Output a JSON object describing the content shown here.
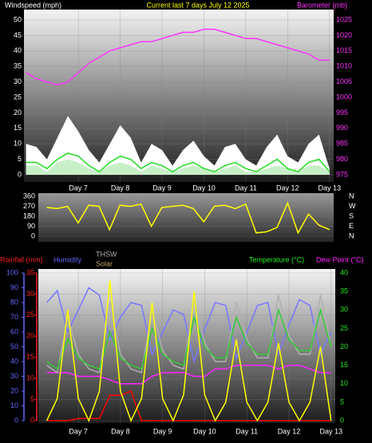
{
  "chart_data": [
    {
      "type": "line",
      "title": "Current last 7 days July 12 2025",
      "x": [
        5.75,
        6,
        6.25,
        6.5,
        6.75,
        7,
        7.25,
        7.5,
        7.75,
        8,
        8.25,
        8.5,
        8.75,
        9,
        9.25,
        9.5,
        9.75,
        10,
        10.25,
        10.5,
        10.75,
        11,
        11.25,
        11.5,
        11.75,
        12,
        12.25,
        12.5,
        12.75,
        13
      ],
      "xlim": [
        5.7,
        13.1
      ],
      "xticks": [
        {
          "value": 7,
          "label": "Day 7"
        },
        {
          "value": 8,
          "label": "Day 8"
        },
        {
          "value": 9,
          "label": "Day 9"
        },
        {
          "value": 10,
          "label": "Day 10"
        },
        {
          "value": 11,
          "label": "Day 11"
        },
        {
          "value": 12,
          "label": "Day 12"
        },
        {
          "value": 13,
          "label": "Day 13"
        }
      ],
      "grid": true,
      "axes": [
        {
          "label": "Windspeed (mph)",
          "color": "#ffffff",
          "lim": [
            0,
            50
          ],
          "ticks": [
            0,
            5,
            10,
            15,
            20,
            25,
            30,
            35,
            40,
            45,
            50
          ]
        },
        {
          "label": "Barometer (mb)",
          "color": "#ff33ff",
          "lim": [
            975,
            1025
          ],
          "ticks": [
            975,
            980,
            985,
            990,
            995,
            1000,
            1005,
            1010,
            1015,
            1020,
            1025
          ]
        }
      ],
      "series": [
        {
          "color": "#ffffff",
          "style": "area",
          "axis": 0,
          "values": [
            10,
            9,
            5,
            12,
            19,
            14,
            8,
            4,
            10,
            16,
            12,
            4,
            10,
            8,
            3,
            8,
            11,
            6,
            3,
            9,
            10,
            5,
            3,
            9,
            13,
            6,
            4,
            10,
            13,
            2
          ]
        },
        {
          "color": "#c8f0c8",
          "style": "area",
          "axis": 0,
          "values": [
            3,
            3,
            1,
            4,
            5,
            4,
            2,
            1,
            3,
            4,
            3,
            1,
            3,
            2,
            1,
            2,
            3,
            2,
            1,
            2,
            3,
            1,
            1,
            2,
            3,
            2,
            1,
            3,
            3,
            1
          ]
        },
        {
          "color": "#22dd22",
          "style": "line",
          "axis": 0,
          "values": [
            4,
            4,
            2,
            5,
            7,
            6,
            3,
            1,
            4,
            6,
            5,
            2,
            4,
            3,
            1,
            3,
            4,
            2,
            1,
            3,
            4,
            2,
            1,
            3,
            5,
            2,
            1,
            4,
            5,
            1
          ]
        },
        {
          "color": "#ff33ff",
          "style": "line",
          "axis": 1,
          "values": [
            1008,
            1006,
            1005,
            1004,
            1005,
            1008,
            1011,
            1013,
            1015,
            1016,
            1017,
            1018,
            1018,
            1019,
            1020,
            1021,
            1021,
            1022,
            1022,
            1021,
            1020,
            1019,
            1019,
            1018,
            1017,
            1016,
            1015,
            1014,
            1012,
            1012
          ]
        }
      ]
    },
    {
      "type": "line",
      "x": [
        6.25,
        6.5,
        6.75,
        7,
        7.25,
        7.5,
        7.75,
        8,
        8.25,
        8.5,
        8.75,
        9,
        9.25,
        9.5,
        9.75,
        10,
        10.25,
        10.5,
        10.75,
        11,
        11.25,
        11.5,
        11.75,
        12,
        12.25,
        12.5,
        12.75,
        13
      ],
      "xlim": [
        6.05,
        13.1
      ],
      "grid": true,
      "axes": [
        {
          "color": "#ffffff",
          "lim": [
            0,
            360
          ],
          "ticks": [
            0,
            90,
            180,
            270,
            360
          ]
        },
        {
          "color": "#ffffff",
          "lim": [
            0,
            360
          ],
          "ticks": [
            {
              "value": 360,
              "label": "N"
            },
            {
              "value": 270,
              "label": "W"
            },
            {
              "value": 180,
              "label": "S"
            },
            {
              "value": 90,
              "label": "E"
            },
            {
              "value": 0,
              "label": "N"
            }
          ]
        }
      ],
      "series": [
        {
          "color": "#ffff00",
          "style": "line",
          "axis": 0,
          "values": [
            260,
            250,
            270,
            120,
            280,
            270,
            60,
            280,
            270,
            290,
            90,
            260,
            270,
            280,
            250,
            130,
            270,
            280,
            250,
            290,
            30,
            40,
            80,
            300,
            30,
            200,
            100,
            60
          ]
        }
      ]
    },
    {
      "type": "line",
      "x": [
        6.25,
        6.5,
        6.75,
        7,
        7.25,
        7.5,
        7.75,
        8,
        8.25,
        8.5,
        8.75,
        9,
        9.25,
        9.5,
        9.75,
        10,
        10.25,
        10.5,
        10.75,
        11,
        11.25,
        11.5,
        11.75,
        12,
        12.25,
        12.5,
        12.75,
        13
      ],
      "xlim": [
        6.05,
        13.1
      ],
      "xticks": [
        {
          "value": 7,
          "label": "Day 7"
        },
        {
          "value": 8,
          "label": "Day 8"
        },
        {
          "value": 9,
          "label": "Day 9"
        },
        {
          "value": 10,
          "label": "Day 10"
        },
        {
          "value": 11,
          "label": "Day 11"
        },
        {
          "value": 12,
          "label": "Day 12"
        },
        {
          "value": 13,
          "label": "Day 13"
        }
      ],
      "grid": true,
      "axes": [
        {
          "label": "Rainfall (mm)",
          "color": "#ff2020",
          "lim": [
            0,
            35
          ],
          "ticks": [
            0,
            5,
            10,
            15,
            20,
            25,
            30,
            35
          ]
        },
        {
          "label": "Humidity",
          "color": "#6666ff",
          "lim": [
            0,
            100
          ],
          "ticks": [
            0,
            10,
            20,
            30,
            40,
            50,
            60,
            70,
            80,
            90,
            100
          ]
        },
        {
          "label": "Temperature (°C)",
          "color": "#22ee22",
          "lim": [
            0,
            40
          ],
          "ticks": [
            0,
            5,
            10,
            15,
            20,
            25,
            30,
            35,
            40
          ]
        }
      ],
      "series": [
        {
          "color": "#7777ff",
          "style": "line",
          "axis": 1,
          "values": [
            80,
            88,
            60,
            75,
            90,
            85,
            55,
            70,
            80,
            78,
            45,
            60,
            75,
            72,
            40,
            62,
            80,
            78,
            42,
            60,
            78,
            80,
            45,
            65,
            82,
            78,
            45,
            60
          ]
        },
        {
          "color": "#ff0000",
          "style": "line",
          "axis": 0,
          "values": [
            0,
            0,
            0,
            0.5,
            0.5,
            0.5,
            6,
            6,
            7,
            0,
            0,
            0,
            0,
            0,
            0,
            0,
            0,
            0,
            0,
            0,
            0,
            0,
            0,
            0,
            0,
            0,
            0,
            0
          ]
        },
        {
          "name": "Dew Point (°C)",
          "color": "#ff22ff",
          "style": "line",
          "axis": 2,
          "values": [
            13,
            13,
            13,
            12,
            12,
            12,
            11,
            10,
            10,
            10,
            12,
            13,
            13,
            13,
            12,
            12,
            14,
            14,
            15,
            15,
            15,
            15,
            14,
            15,
            15,
            14,
            13,
            13
          ]
        },
        {
          "name": "THSW",
          "color": "#b0b0b0",
          "style": "line",
          "axis": 2,
          "values": [
            15,
            13,
            28,
            18,
            14,
            13,
            32,
            18,
            14,
            13,
            30,
            19,
            15,
            14,
            33,
            21,
            16,
            16,
            32,
            22,
            17,
            17,
            34,
            23,
            18,
            18,
            34,
            20
          ]
        },
        {
          "color": "#33cc33",
          "style": "line",
          "axis": 2,
          "values": [
            16,
            14,
            22,
            17,
            15,
            14,
            24,
            17,
            15,
            14,
            25,
            18,
            16,
            15,
            28,
            20,
            17,
            17,
            28,
            21,
            18,
            18,
            30,
            22,
            19,
            19,
            30,
            20
          ]
        },
        {
          "name": "Solar",
          "color": "#ffff00",
          "label_color": "#c0a060",
          "style": "line",
          "axis": 2,
          "values": [
            0,
            6,
            30,
            6,
            0,
            8,
            38,
            8,
            0,
            6,
            32,
            6,
            0,
            7,
            35,
            7,
            0,
            5,
            22,
            5,
            0,
            5,
            21,
            5,
            0,
            5,
            20,
            0
          ]
        }
      ]
    }
  ]
}
